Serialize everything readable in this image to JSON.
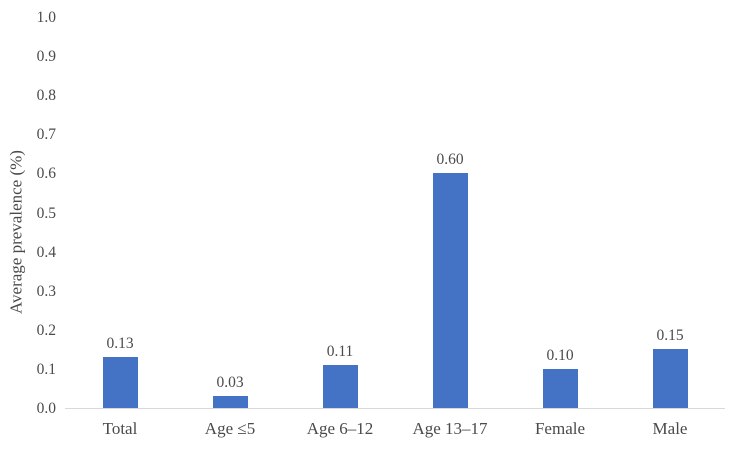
{
  "chart_data": {
    "type": "bar",
    "categories": [
      "Total",
      "Age ≤5",
      "Age 6–12",
      "Age 13–17",
      "Female",
      "Male"
    ],
    "values": [
      0.13,
      0.03,
      0.11,
      0.6,
      0.1,
      0.15
    ],
    "data_labels": [
      "0.13",
      "0.03",
      "0.11",
      "0.60",
      "0.10",
      "0.15"
    ],
    "title": "",
    "xlabel": "",
    "ylabel": "Average prevalence (%)",
    "ylim": [
      0.0,
      1.0
    ],
    "ytick_step": 0.1,
    "ytick_labels": [
      "0.0",
      "0.1",
      "0.2",
      "0.3",
      "0.4",
      "0.5",
      "0.6",
      "0.7",
      "0.8",
      "0.9",
      "1.0"
    ],
    "grid": false,
    "legend": false,
    "colors": {
      "bar_fill": "#4472C4",
      "axis_line": "#D9D9D9",
      "text": "#4a4a4a"
    }
  }
}
